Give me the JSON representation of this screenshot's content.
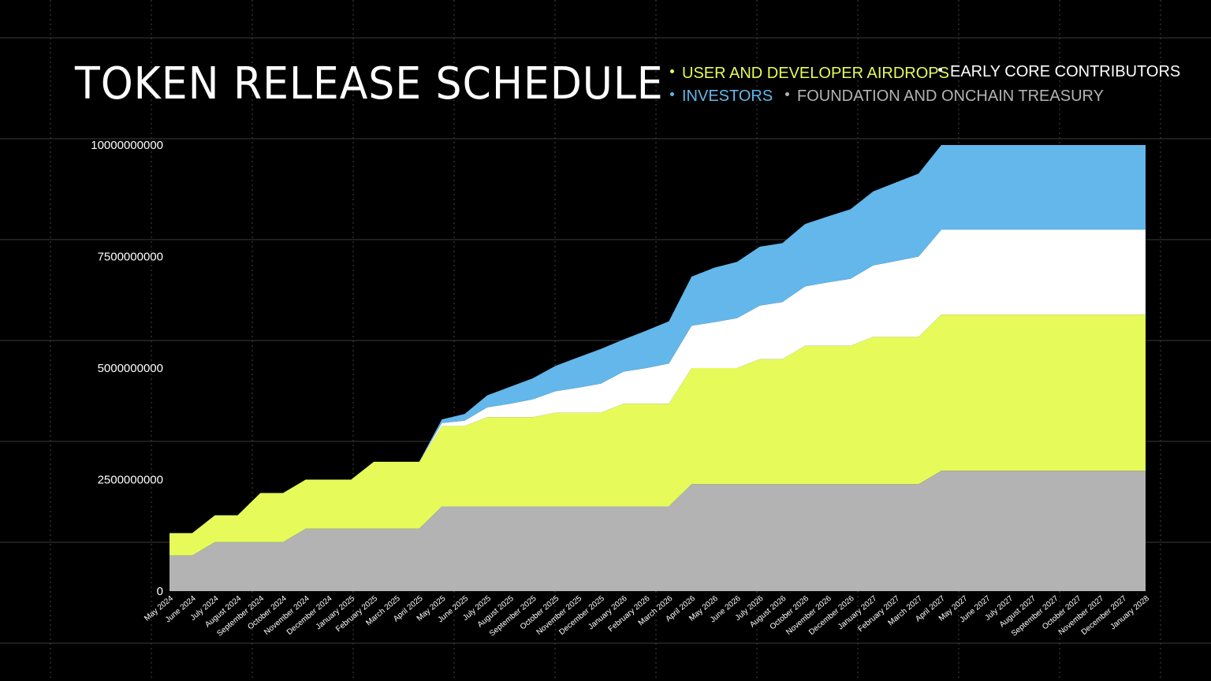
{
  "title": "TOKEN RELEASE SCHEDULE",
  "chart_data": {
    "type": "area",
    "stacked": true,
    "title": "TOKEN RELEASE SCHEDULE",
    "xlabel": "",
    "ylabel": "",
    "ylim": [
      0,
      10000000000
    ],
    "yticks": [
      0,
      2500000000,
      5000000000,
      7500000000,
      10000000000
    ],
    "ytick_labels": [
      "0",
      "2500000000",
      "5000000000",
      "7500000000",
      "10000000000"
    ],
    "grid": true,
    "legend_position": "top-right",
    "categories": [
      "May 2024",
      "June 2024",
      "July 2024",
      "August 2024",
      "September 2024",
      "October 2024",
      "November 2024",
      "December 2024",
      "January 2025",
      "February 2025",
      "March 2025",
      "April 2025",
      "May 2025",
      "June 2025",
      "July 2025",
      "August 2025",
      "September 2025",
      "October 2025",
      "November 2025",
      "December 2025",
      "January 2026",
      "February 2026",
      "March 2026",
      "April 2026",
      "May 2026",
      "June 2026",
      "July 2026",
      "August 2026",
      "October 2026",
      "November 2026",
      "December 2026",
      "January 2027",
      "February 2027",
      "March 2027",
      "April 2027",
      "May 2027",
      "June 2027",
      "July 2027",
      "August 2027",
      "September 2027",
      "October 2027",
      "November 2027",
      "December 2027",
      "January 2028"
    ],
    "series": [
      {
        "name": "FOUNDATION AND  ONCHAIN TREASURY",
        "color": "#b3b3b3",
        "values": [
          800000000,
          800000000,
          1100000000,
          1100000000,
          1100000000,
          1100000000,
          1400000000,
          1400000000,
          1400000000,
          1400000000,
          1400000000,
          1400000000,
          1900000000,
          1900000000,
          1900000000,
          1900000000,
          1900000000,
          1900000000,
          1900000000,
          1900000000,
          1900000000,
          1900000000,
          1900000000,
          2400000000,
          2400000000,
          2400000000,
          2400000000,
          2400000000,
          2400000000,
          2400000000,
          2400000000,
          2400000000,
          2400000000,
          2400000000,
          2700000000,
          2700000000,
          2700000000,
          2700000000,
          2700000000,
          2700000000,
          2700000000,
          2700000000,
          2700000000,
          2700000000
        ]
      },
      {
        "name": "USER AND DEVELOPER AIRDROPS",
        "color": "#e6fb5a",
        "values": [
          500000000,
          500000000,
          600000000,
          600000000,
          1100000000,
          1100000000,
          1100000000,
          1100000000,
          1100000000,
          1500000000,
          1500000000,
          1500000000,
          1800000000,
          1800000000,
          2000000000,
          2000000000,
          2000000000,
          2100000000,
          2100000000,
          2100000000,
          2300000000,
          2300000000,
          2300000000,
          2600000000,
          2600000000,
          2600000000,
          2800000000,
          2800000000,
          3100000000,
          3100000000,
          3100000000,
          3300000000,
          3300000000,
          3300000000,
          3500000000,
          3500000000,
          3500000000,
          3500000000,
          3500000000,
          3500000000,
          3500000000,
          3500000000,
          3500000000,
          3500000000
        ]
      },
      {
        "name": "EARLY CORE CONTRIBUTORS",
        "color": "#ffffff",
        "values": [
          0,
          0,
          0,
          0,
          0,
          0,
          0,
          0,
          0,
          0,
          0,
          0,
          70000000,
          120000000,
          220000000,
          300000000,
          400000000,
          480000000,
          560000000,
          650000000,
          720000000,
          800000000,
          900000000,
          950000000,
          1030000000,
          1120000000,
          1200000000,
          1280000000,
          1330000000,
          1420000000,
          1500000000,
          1600000000,
          1700000000,
          1800000000,
          1900000000,
          1900000000,
          1900000000,
          1900000000,
          1900000000,
          1900000000,
          1900000000,
          1900000000,
          1900000000,
          1900000000
        ]
      },
      {
        "name": "INVESTORS",
        "color": "#63b7ea",
        "values": [
          0,
          0,
          0,
          0,
          0,
          0,
          0,
          0,
          0,
          0,
          0,
          0,
          80000000,
          150000000,
          270000000,
          380000000,
          470000000,
          570000000,
          680000000,
          780000000,
          720000000,
          840000000,
          950000000,
          1100000000,
          1220000000,
          1260000000,
          1320000000,
          1320000000,
          1400000000,
          1480000000,
          1560000000,
          1660000000,
          1760000000,
          1860000000,
          1900000000,
          1900000000,
          1900000000,
          1900000000,
          1900000000,
          1900000000,
          1900000000,
          1900000000,
          1900000000,
          1900000000
        ]
      }
    ]
  },
  "legend": [
    {
      "label": "USER AND DEVELOPER AIRDROPS",
      "color": "#e6fb5a"
    },
    {
      "label": "EARLY CORE CONTRIBUTORS",
      "color": "#ffffff"
    },
    {
      "label": "INVESTORS",
      "color": "#63b7ea"
    },
    {
      "label": "FOUNDATION AND  ONCHAIN TREASURY",
      "color": "#b3b3b3"
    }
  ]
}
